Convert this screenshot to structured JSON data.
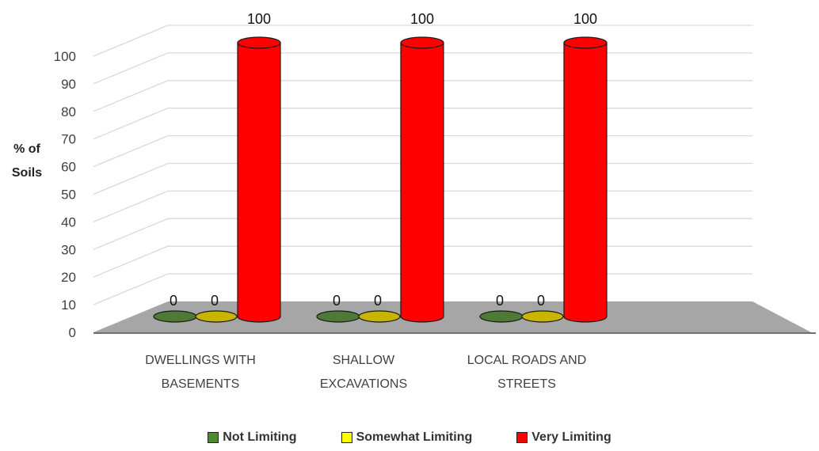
{
  "chart_data": {
    "type": "bar",
    "style": "3d-cylinder",
    "ylabel": [
      "% of",
      "Soils"
    ],
    "ylim": [
      0,
      100
    ],
    "yticks": [
      0,
      10,
      20,
      30,
      40,
      50,
      60,
      70,
      80,
      90,
      100
    ],
    "grid": true,
    "legend_position": "bottom",
    "categories": [
      [
        "DWELLINGS WITH",
        "BASEMENTS"
      ],
      [
        "SHALLOW",
        "EXCAVATIONS"
      ],
      [
        "LOCAL ROADS AND",
        "STREETS"
      ]
    ],
    "series": [
      {
        "name": "Not Limiting",
        "color": "#4e7a35",
        "values": [
          0,
          0,
          0
        ]
      },
      {
        "name": "Somewhat Limiting",
        "color": "#c9b400",
        "values": [
          0,
          0,
          0
        ]
      },
      {
        "name": "Very Limiting",
        "color": "#ff0000",
        "values": [
          100,
          100,
          100
        ]
      }
    ]
  },
  "legend_swatch_colors": [
    "#4e8a2e",
    "#ffff00",
    "#ff0000"
  ]
}
